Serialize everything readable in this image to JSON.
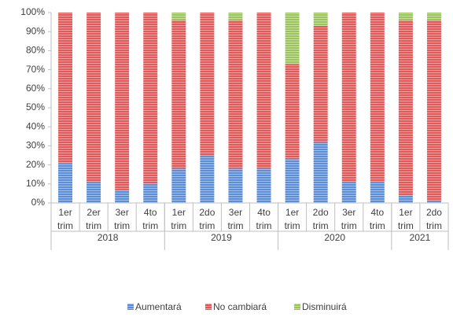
{
  "chart_data": {
    "type": "stacked_bar_100",
    "categories": [
      "1er trim",
      "2er trim",
      "3er trim",
      "4to trim",
      "1er trim",
      "2do trim",
      "3er trim",
      "4to trim",
      "1er trim",
      "2do trim",
      "3er trim",
      "4to trim",
      "1er trim",
      "2do trim"
    ],
    "groups": [
      {
        "name": "2018",
        "span": 4
      },
      {
        "name": "2019",
        "span": 4
      },
      {
        "name": "2020",
        "span": 4
      },
      {
        "name": "2021",
        "span": 2
      }
    ],
    "series": [
      {
        "name": "Aumentará",
        "color": "#5b8ed6",
        "values": [
          21,
          11,
          7,
          10,
          18,
          25,
          18,
          18,
          23,
          32,
          11,
          11,
          4,
          1
        ]
      },
      {
        "name": "No cambiará",
        "color": "#e05a5a",
        "values": [
          79,
          89,
          93,
          90,
          78,
          75,
          78,
          82,
          50,
          61,
          89,
          89,
          92,
          95
        ]
      },
      {
        "name": "Disminuirá",
        "color": "#9cc45c",
        "values": [
          0,
          0,
          0,
          0,
          4,
          0,
          4,
          0,
          27,
          7,
          0,
          0,
          4,
          4
        ]
      }
    ],
    "ylim": [
      0,
      100
    ],
    "yticks": [
      {
        "value": 0,
        "label": "0%"
      },
      {
        "value": 10,
        "label": "10%"
      },
      {
        "value": 20,
        "label": "20%"
      },
      {
        "value": 30,
        "label": "30%"
      },
      {
        "value": 40,
        "label": "40%"
      },
      {
        "value": 50,
        "label": "50%"
      },
      {
        "value": 60,
        "label": "60%"
      },
      {
        "value": 70,
        "label": "70%"
      },
      {
        "value": 80,
        "label": "80%"
      },
      {
        "value": 90,
        "label": "90%"
      },
      {
        "value": 100,
        "label": "100%"
      }
    ],
    "legend": "bottom"
  }
}
